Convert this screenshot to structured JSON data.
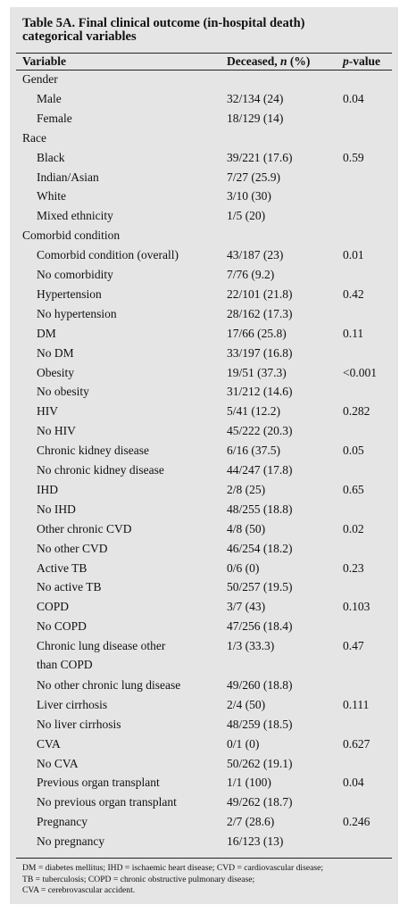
{
  "table": {
    "title_line1": "Table 5A. Final clinical outcome (in-hospital death)",
    "title_line2": "categorical variables",
    "col_variable": "Variable",
    "col_deceased_pre": "Deceased, ",
    "col_deceased_n": "n",
    "col_deceased_post": " (%)",
    "col_p_italic": "p",
    "col_p_rest": "-value",
    "rows": [
      {
        "type": "cat",
        "label": "Gender"
      },
      {
        "type": "sub",
        "label": "Male",
        "deceased": "32/134 (24)",
        "p": "0.04"
      },
      {
        "type": "sub",
        "label": "Female",
        "deceased": "18/129 (14)",
        "p": ""
      },
      {
        "type": "cat",
        "label": "Race"
      },
      {
        "type": "sub",
        "label": "Black",
        "deceased": "39/221 (17.6)",
        "p": "0.59"
      },
      {
        "type": "sub",
        "label": "Indian/Asian",
        "deceased": "7/27 (25.9)",
        "p": ""
      },
      {
        "type": "sub",
        "label": "White",
        "deceased": "3/10 (30)",
        "p": ""
      },
      {
        "type": "sub",
        "label": "Mixed ethnicity",
        "deceased": "1/5 (20)",
        "p": ""
      },
      {
        "type": "cat",
        "label": "Comorbid condition"
      },
      {
        "type": "sub",
        "label": "Comorbid condition (overall)",
        "deceased": "43/187 (23)",
        "p": "0.01"
      },
      {
        "type": "sub",
        "label": "No comorbidity",
        "deceased": "7/76 (9.2)",
        "p": ""
      },
      {
        "type": "sub",
        "label": "Hypertension",
        "deceased": "22/101 (21.8)",
        "p": "0.42"
      },
      {
        "type": "sub",
        "label": "No hypertension",
        "deceased": "28/162 (17.3)",
        "p": ""
      },
      {
        "type": "sub",
        "label": "DM",
        "deceased": "17/66 (25.8)",
        "p": "0.11"
      },
      {
        "type": "sub",
        "label": "No DM",
        "deceased": "33/197 (16.8)",
        "p": ""
      },
      {
        "type": "sub",
        "label": "Obesity",
        "deceased": "19/51 (37.3)",
        "p": "<0.001"
      },
      {
        "type": "sub",
        "label": "No obesity",
        "deceased": "31/212 (14.6)",
        "p": ""
      },
      {
        "type": "sub",
        "label": "HIV",
        "deceased": "5/41 (12.2)",
        "p": "0.282"
      },
      {
        "type": "sub",
        "label": "No HIV",
        "deceased": "45/222 (20.3)",
        "p": ""
      },
      {
        "type": "sub",
        "label": "Chronic kidney disease",
        "deceased": "6/16 (37.5)",
        "p": "0.05"
      },
      {
        "type": "sub",
        "label": "No chronic kidney disease",
        "deceased": "44/247 (17.8)",
        "p": ""
      },
      {
        "type": "sub",
        "label": "IHD",
        "deceased": "2/8 (25)",
        "p": "0.65"
      },
      {
        "type": "sub",
        "label": "No IHD",
        "deceased": "48/255 (18.8)",
        "p": ""
      },
      {
        "type": "sub",
        "label": "Other chronic CVD",
        "deceased": "4/8 (50)",
        "p": "0.02"
      },
      {
        "type": "sub",
        "label": "No other CVD",
        "deceased": "46/254 (18.2)",
        "p": ""
      },
      {
        "type": "sub",
        "label": "Active TB",
        "deceased": "0/6 (0)",
        "p": "0.23"
      },
      {
        "type": "sub",
        "label": "No active TB",
        "deceased": "50/257 (19.5)",
        "p": ""
      },
      {
        "type": "sub",
        "label": "COPD",
        "deceased": "3/7 (43)",
        "p": "0.103"
      },
      {
        "type": "sub",
        "label": "No COPD",
        "deceased": "47/256 (18.4)",
        "p": ""
      },
      {
        "type": "two",
        "label": "Chronic lung disease other",
        "label2": "than COPD",
        "deceased": "1/3 (33.3)",
        "p": "0.47"
      },
      {
        "type": "sub",
        "label": "No other chronic lung disease",
        "deceased": "49/260 (18.8)",
        "p": ""
      },
      {
        "type": "sub",
        "label": "Liver cirrhosis",
        "deceased": "2/4 (50)",
        "p": "0.111"
      },
      {
        "type": "sub",
        "label": "No liver cirrhosis",
        "deceased": "48/259 (18.5)",
        "p": ""
      },
      {
        "type": "sub",
        "label": "CVA",
        "deceased": "0/1 (0)",
        "p": "0.627"
      },
      {
        "type": "sub",
        "label": "No CVA",
        "deceased": "50/262 (19.1)",
        "p": ""
      },
      {
        "type": "sub",
        "label": "Previous organ transplant",
        "deceased": "1/1 (100)",
        "p": "0.04"
      },
      {
        "type": "sub",
        "label": "No previous organ transplant",
        "deceased": "49/262 (18.7)",
        "p": ""
      },
      {
        "type": "sub",
        "label": "Pregnancy",
        "deceased": "2/7 (28.6)",
        "p": "0.246"
      },
      {
        "type": "sub",
        "label": "No pregnancy",
        "deceased": "16/123 (13)",
        "p": ""
      }
    ],
    "footnote_1": "DM = diabetes mellitus; IHD = ischaemic heart disease; CVD = cardiovascular disease;",
    "footnote_2": "TB = tuberculosis; COPD = chronic obstructive pulmonary disease;",
    "footnote_3": "CVA = cerebrovascular accident."
  }
}
